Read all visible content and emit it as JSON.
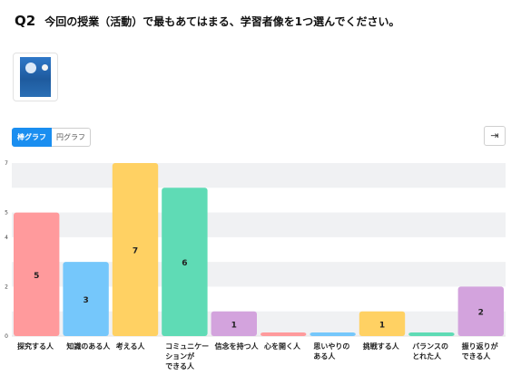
{
  "question": {
    "number": "Q2",
    "text": "今回の授業（活動）で最もあてはまる、学習者像を1つ選んでください。"
  },
  "thumbnail": {
    "icon": "document-thumbnail"
  },
  "tabs": [
    {
      "label": "棒グラフ",
      "active": true
    },
    {
      "label": "円グラフ",
      "active": false
    }
  ],
  "export": {
    "icon": "export-arrow-icon",
    "glyph": "⇥"
  },
  "chart_data": {
    "type": "bar",
    "categories": [
      [
        "探究する人"
      ],
      [
        "知識のある人"
      ],
      [
        "考える人"
      ],
      [
        "コミュニケー",
        "ションが",
        "できる人"
      ],
      [
        "信念を持つ人"
      ],
      [
        "心を開く人"
      ],
      [
        "思いやりの",
        "ある人"
      ],
      [
        "挑戦する人"
      ],
      [
        "バランスの",
        "とれた人"
      ],
      [
        "振り返りが",
        "できる人"
      ]
    ],
    "values": [
      5,
      3,
      7,
      6,
      1,
      0,
      0,
      1,
      0,
      2
    ],
    "colors": [
      "#ff9a9c",
      "#75c7fb",
      "#ffd163",
      "#5fdbb5",
      "#d3a3dd",
      "#ff9a9c",
      "#75c7fb",
      "#ffd163",
      "#5fdbb5",
      "#d3a3dd"
    ],
    "yticks": [
      0,
      2,
      4,
      5,
      7
    ],
    "ylim": [
      0,
      7
    ],
    "grid": true,
    "title": "",
    "xlabel": "",
    "ylabel": ""
  }
}
